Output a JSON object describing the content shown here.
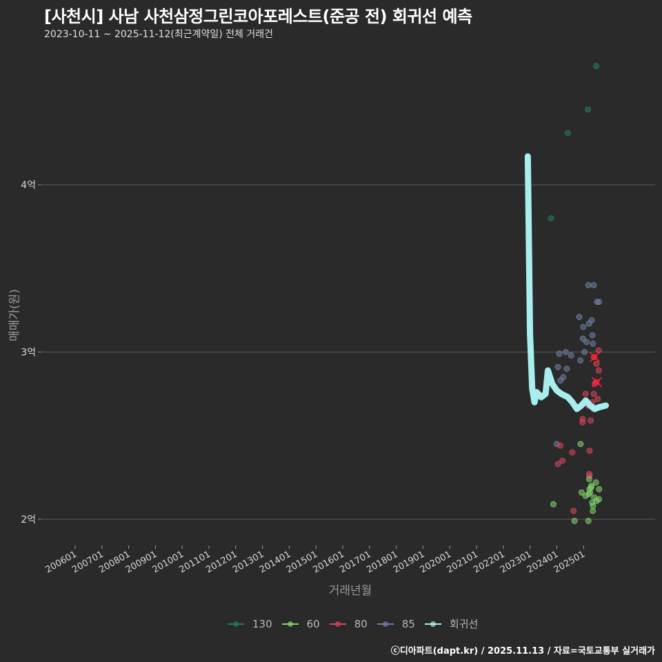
{
  "header": {
    "title": "[사천시] 사남 사천삼정그린코아포레스트(준공 전) 회귀선 예측",
    "subtitle": "2023-10-11 ~ 2025-11-12(최근계약일) 전체 거래건"
  },
  "axes": {
    "ylabel": "매매가(원)",
    "xlabel": "거래년월"
  },
  "footer": "ⓒ디아파트(dapt.kr) / 2025.11.13 / 자료=국토교통부 실거래가",
  "colors": {
    "background": "#2a2a2b",
    "grid": "#5c5c5c",
    "130": "#1f7a6a",
    "60": "#7fd36a",
    "80": "#d9455a",
    "85": "#6f7fa3",
    "regression": "#a8eeee",
    "highlight": "#ff2030"
  },
  "legend": [
    {
      "label": "130",
      "color": "#1f7a6a"
    },
    {
      "label": "60",
      "color": "#7fd36a"
    },
    {
      "label": "80",
      "color": "#d9455a"
    },
    {
      "label": "85",
      "color": "#6f7fa3"
    },
    {
      "label": "회귀선",
      "color": "#a8eeee"
    }
  ],
  "chart_data": {
    "type": "scatter",
    "title": "[사천시] 사남 사천삼정그린코아포레스트(준공 전) 회귀선 예측",
    "subtitle": "2023-10-11 ~ 2025-11-12(최근계약일) 전체 거래건",
    "xlabel": "거래년월",
    "ylabel": "매매가(원)",
    "x_ticks": [
      "200601",
      "200701",
      "200801",
      "200901",
      "201001",
      "201101",
      "201201",
      "201301",
      "201401",
      "201501",
      "201601",
      "201701",
      "201801",
      "201901",
      "202001",
      "202101",
      "202201",
      "202301",
      "202401",
      "202501"
    ],
    "y_ticks": [
      {
        "label": "2억",
        "value": 200000000
      },
      {
        "label": "3억",
        "value": 300000000
      },
      {
        "label": "4억",
        "value": 400000000
      }
    ],
    "ylim": [
      185000000,
      475000000
    ],
    "grid": "horizontal major only",
    "legend_position": "bottom",
    "series": [
      {
        "name": "130",
        "points": [
          {
            "x": "2023-10",
            "y": 380000000
          },
          {
            "x": "2024-06",
            "y": 431000000
          },
          {
            "x": "2025-03",
            "y": 445000000
          },
          {
            "x": "2025-07",
            "y": 471000000
          }
        ]
      },
      {
        "name": "85",
        "points": [
          {
            "x": "2024-01",
            "y": 245000000
          },
          {
            "x": "2024-02",
            "y": 299000000
          },
          {
            "x": "2024-02",
            "y": 291000000
          },
          {
            "x": "2024-03",
            "y": 283000000
          },
          {
            "x": "2024-04",
            "y": 285000000
          },
          {
            "x": "2024-05",
            "y": 300000000
          },
          {
            "x": "2024-06",
            "y": 290000000
          },
          {
            "x": "2024-07",
            "y": 298000000
          },
          {
            "x": "2024-11",
            "y": 321000000
          },
          {
            "x": "2025-01",
            "y": 315000000
          },
          {
            "x": "2025-01",
            "y": 308000000
          },
          {
            "x": "2025-02",
            "y": 306000000
          },
          {
            "x": "2025-03",
            "y": 340000000
          },
          {
            "x": "2025-04",
            "y": 317000000
          },
          {
            "x": "2025-05",
            "y": 310000000
          },
          {
            "x": "2025-05",
            "y": 319000000
          },
          {
            "x": "2025-05",
            "y": 305000000
          },
          {
            "x": "2025-06",
            "y": 340000000
          },
          {
            "x": "2025-07",
            "y": 330000000
          },
          {
            "x": "2025-08",
            "y": 330000000
          },
          {
            "x": "2024-12",
            "y": 295000000
          },
          {
            "x": "2025-02",
            "y": 300000000
          }
        ]
      },
      {
        "name": "80",
        "points": [
          {
            "x": "2024-01",
            "y": 233000000
          },
          {
            "x": "2024-02",
            "y": 244000000
          },
          {
            "x": "2024-04",
            "y": 235000000
          },
          {
            "x": "2024-08",
            "y": 240000000
          },
          {
            "x": "2024-12",
            "y": 258000000
          },
          {
            "x": "2025-01",
            "y": 260000000
          },
          {
            "x": "2025-02",
            "y": 275000000
          },
          {
            "x": "2025-03",
            "y": 268000000
          },
          {
            "x": "2025-04",
            "y": 259000000
          },
          {
            "x": "2025-04",
            "y": 241000000
          },
          {
            "x": "2025-04",
            "y": 227000000
          },
          {
            "x": "2025-05",
            "y": 275000000
          },
          {
            "x": "2025-05",
            "y": 270000000
          },
          {
            "x": "2025-06",
            "y": 297000000
          },
          {
            "x": "2025-06",
            "y": 281000000
          },
          {
            "x": "2025-07",
            "y": 293000000
          },
          {
            "x": "2025-07",
            "y": 282000000
          },
          {
            "x": "2025-07",
            "y": 272000000
          },
          {
            "x": "2025-08",
            "y": 301000000
          },
          {
            "x": "2025-08",
            "y": 289000000
          },
          {
            "x": "2025-06",
            "y": 266000000
          },
          {
            "x": "2024-08",
            "y": 205000000
          },
          {
            "x": "2025-04",
            "y": 226000000
          }
        ]
      },
      {
        "name": "60",
        "points": [
          {
            "x": "2023-11",
            "y": 209000000
          },
          {
            "x": "2024-09",
            "y": 199000000
          },
          {
            "x": "2024-12",
            "y": 245000000
          },
          {
            "x": "2024-12",
            "y": 216000000
          },
          {
            "x": "2025-02",
            "y": 214000000
          },
          {
            "x": "2025-03",
            "y": 215000000
          },
          {
            "x": "2025-03",
            "y": 199000000
          },
          {
            "x": "2025-04",
            "y": 224000000
          },
          {
            "x": "2025-04",
            "y": 218000000
          },
          {
            "x": "2025-04",
            "y": 216000000
          },
          {
            "x": "2025-05",
            "y": 220000000
          },
          {
            "x": "2025-05",
            "y": 219000000
          },
          {
            "x": "2025-05",
            "y": 210000000
          },
          {
            "x": "2025-05",
            "y": 208000000
          },
          {
            "x": "2025-05",
            "y": 205000000
          },
          {
            "x": "2025-06",
            "y": 222000000
          },
          {
            "x": "2025-06",
            "y": 213000000
          },
          {
            "x": "2025-07",
            "y": 211000000
          },
          {
            "x": "2025-08",
            "y": 218000000
          },
          {
            "x": "2025-08",
            "y": 212000000
          }
        ]
      },
      {
        "name": "회귀선",
        "type": "line",
        "points": [
          {
            "x": "2022-12",
            "y": 417000000
          },
          {
            "x": "2023-01",
            "y": 311000000
          },
          {
            "x": "2023-02",
            "y": 278000000
          },
          {
            "x": "2023-03",
            "y": 270000000
          },
          {
            "x": "2023-04",
            "y": 276000000
          },
          {
            "x": "2023-06",
            "y": 273000000
          },
          {
            "x": "2023-08",
            "y": 275000000
          },
          {
            "x": "2023-09",
            "y": 289000000
          },
          {
            "x": "2023-11",
            "y": 281000000
          },
          {
            "x": "2024-01",
            "y": 277000000
          },
          {
            "x": "2024-03",
            "y": 275000000
          },
          {
            "x": "2024-06",
            "y": 273000000
          },
          {
            "x": "2024-08",
            "y": 270000000
          },
          {
            "x": "2024-10",
            "y": 266000000
          },
          {
            "x": "2024-12",
            "y": 268000000
          },
          {
            "x": "2025-02",
            "y": 271000000
          },
          {
            "x": "2025-04",
            "y": 268000000
          },
          {
            "x": "2025-06",
            "y": 266000000
          },
          {
            "x": "2025-08",
            "y": 267000000
          },
          {
            "x": "2025-11",
            "y": 268000000
          }
        ]
      }
    ],
    "highlighted_points": [
      {
        "x": "2025-06",
        "y": 297000000,
        "marker": "x"
      },
      {
        "x": "2025-07",
        "y": 282000000,
        "marker": "x"
      }
    ]
  }
}
